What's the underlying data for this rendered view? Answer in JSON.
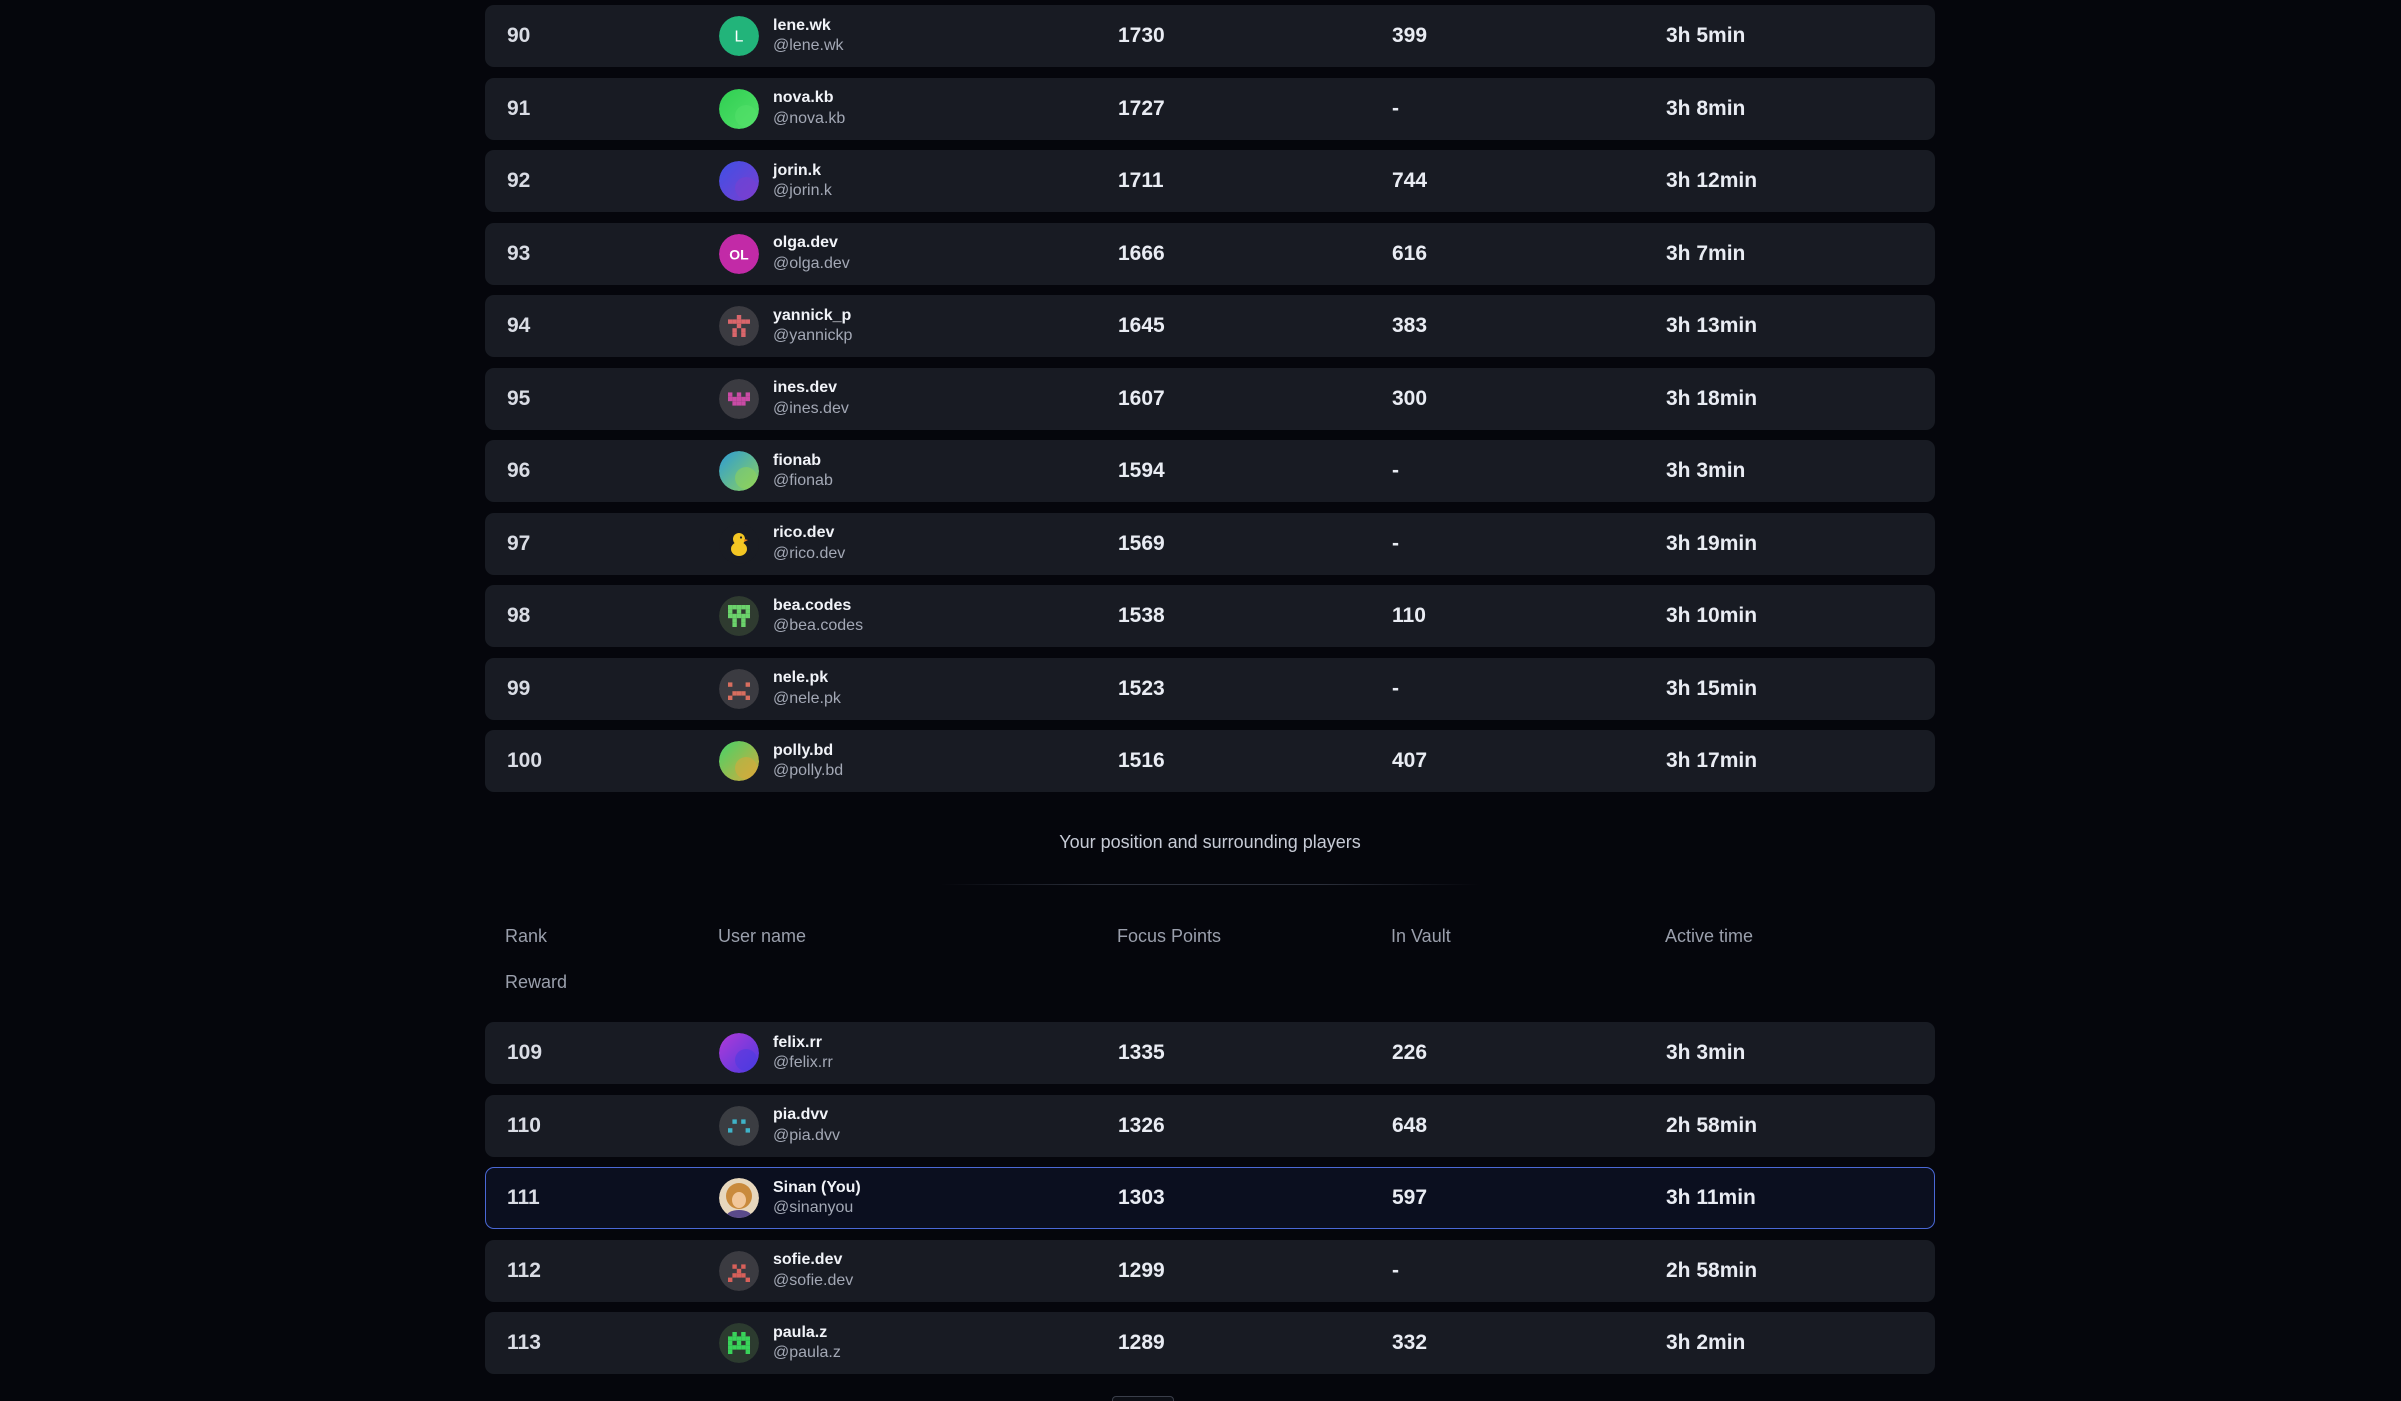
{
  "top_rows": [
    {
      "rank": "90",
      "name": "lene.wk",
      "handle": "@lene.wk",
      "points": "1730",
      "vault": "399",
      "time": "3h 5min",
      "avatar_type": "letter",
      "avatar_text": "L",
      "avatar_color": "#22b47a"
    },
    {
      "rank": "91",
      "name": "nova.kb",
      "handle": "@nova.kb",
      "points": "1727",
      "vault": "-",
      "time": "3h 8min",
      "avatar_type": "gradient",
      "avatar_color": "#2fcf52",
      "avatar_color2": "#54e06a"
    },
    {
      "rank": "92",
      "name": "jorin.k",
      "handle": "@jorin.k",
      "points": "1711",
      "vault": "744",
      "time": "3h 12min",
      "avatar_type": "gradient",
      "avatar_color": "#3f50e6",
      "avatar_color2": "#7a3fcf"
    },
    {
      "rank": "93",
      "name": "olga.dev",
      "handle": "@olga.dev",
      "points": "1666",
      "vault": "616",
      "time": "3h 7min",
      "avatar_type": "letter",
      "avatar_text": "OL",
      "avatar_color": "#c22aa7"
    },
    {
      "rank": "94",
      "name": "yannick_p",
      "handle": "@yannickp",
      "points": "1645",
      "vault": "383",
      "time": "3h 13min",
      "avatar_type": "pixel",
      "avatar_color": "#d9666b",
      "avatar_bg": "#3b3b41",
      "pattern": "cross"
    },
    {
      "rank": "95",
      "name": "ines.dev",
      "handle": "@ines.dev",
      "points": "1607",
      "vault": "300",
      "time": "3h 18min",
      "avatar_type": "pixel",
      "avatar_color": "#c94ba5",
      "avatar_bg": "#3b3b41",
      "pattern": "crown"
    },
    {
      "rank": "96",
      "name": "fionab",
      "handle": "@fionab",
      "points": "1594",
      "vault": "-",
      "time": "3h 3min",
      "avatar_type": "gradient",
      "avatar_color": "#2c9bd6",
      "avatar_color2": "#8fd35a"
    },
    {
      "rank": "97",
      "name": "rico.dev",
      "handle": "@rico.dev",
      "points": "1569",
      "vault": "-",
      "time": "3h 19min",
      "avatar_type": "emoji",
      "avatar_color": "#f3c623"
    },
    {
      "rank": "98",
      "name": "bea.codes",
      "handle": "@bea.codes",
      "points": "1538",
      "vault": "110",
      "time": "3h 10min",
      "avatar_type": "pixel",
      "avatar_color": "#6bd36b",
      "avatar_bg": "#2f3b30",
      "pattern": "grid"
    },
    {
      "rank": "99",
      "name": "nele.pk",
      "handle": "@nele.pk",
      "points": "1523",
      "vault": "-",
      "time": "3h 15min",
      "avatar_type": "pixel",
      "avatar_color": "#d86e5f",
      "avatar_bg": "#3b3b41",
      "pattern": "face"
    },
    {
      "rank": "100",
      "name": "polly.bd",
      "handle": "@polly.bd",
      "points": "1516",
      "vault": "407",
      "time": "3h 17min",
      "avatar_type": "gradient",
      "avatar_color": "#43d46a",
      "avatar_color2": "#d8a93a"
    }
  ],
  "section_title": "Your position and surrounding players",
  "columns": {
    "rank": "Rank",
    "reward": "Reward",
    "user": "User name",
    "points": "Focus Points",
    "vault": "In Vault",
    "time": "Active time"
  },
  "bottom_rows": [
    {
      "rank": "109",
      "name": "felix.rr",
      "handle": "@felix.rr",
      "points": "1335",
      "vault": "226",
      "time": "3h 3min",
      "avatar_type": "gradient",
      "avatar_color": "#b13ad8",
      "avatar_color2": "#4a3ae0"
    },
    {
      "rank": "110",
      "name": "pia.dvv",
      "handle": "@pia.dvv",
      "points": "1326",
      "vault": "648",
      "time": "2h 58min",
      "avatar_type": "pixel",
      "avatar_color": "#3fb3c9",
      "avatar_bg": "#3b3d42",
      "pattern": "dots"
    },
    {
      "rank": "111",
      "name": "Sinan (You)",
      "handle": "@sinanyou",
      "points": "1303",
      "vault": "597",
      "time": "3h 11min",
      "avatar_type": "photo",
      "avatar_color": "#c98a3c",
      "you": true
    },
    {
      "rank": "112",
      "name": "sofie.dev",
      "handle": "@sofie.dev",
      "points": "1299",
      "vault": "-",
      "time": "2h 58min",
      "avatar_type": "pixel",
      "avatar_color": "#d8605a",
      "avatar_bg": "#3b3b41",
      "pattern": "frown"
    },
    {
      "rank": "113",
      "name": "paula.z",
      "handle": "@paula.z",
      "points": "1289",
      "vault": "332",
      "time": "3h 2min",
      "avatar_type": "pixel",
      "avatar_color": "#39d45a",
      "avatar_bg": "#2c3b2f",
      "pattern": "invader"
    }
  ]
}
